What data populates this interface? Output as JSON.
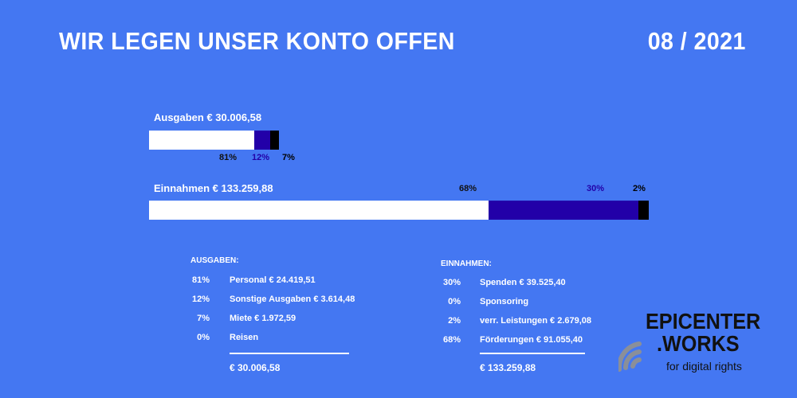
{
  "header": {
    "title": "WIR LEGEN UNSER KONTO OFFEN",
    "date": "08 / 2021"
  },
  "colors": {
    "background": "#4477f2",
    "white": "#ffffff",
    "indigo": "#2200a8",
    "black": "#000000"
  },
  "chart_data": [
    {
      "type": "bar",
      "title": "Ausgaben € 30.006,58",
      "stacked": true,
      "total": 30006.58,
      "segments": [
        {
          "label": "81%",
          "value": 81,
          "color": "#ffffff"
        },
        {
          "label": "12%",
          "value": 12,
          "color": "#2200a8"
        },
        {
          "label": "7%",
          "value": 7,
          "color": "#000000"
        }
      ]
    },
    {
      "type": "bar",
      "title": "Einnahmen € 133.259,88",
      "stacked": true,
      "total": 133259.88,
      "segments": [
        {
          "label": "68%",
          "value": 68,
          "color": "#ffffff"
        },
        {
          "label": "30%",
          "value": 30,
          "color": "#2200a8"
        },
        {
          "label": "2%",
          "value": 2,
          "color": "#000000"
        }
      ]
    }
  ],
  "ausgaben": {
    "heading": "AUSGABEN:",
    "rows": [
      {
        "pct": "81%",
        "text": "Personal € 24.419,51"
      },
      {
        "pct": "12%",
        "text": "Sonstige Ausgaben € 3.614,48"
      },
      {
        "pct": "7%",
        "text": "Miete € 1.972,59"
      },
      {
        "pct": "0%",
        "text": "Reisen"
      }
    ],
    "total": "€ 30.006,58"
  },
  "einnahmen": {
    "heading": "EINNAHMEN:",
    "rows": [
      {
        "pct": "30%",
        "text": "Spenden € 39.525,40"
      },
      {
        "pct": "0%",
        "text": "Sponsoring"
      },
      {
        "pct": "2%",
        "text": "verr. Leistungen € 2.679,08"
      },
      {
        "pct": "68%",
        "text": "Förderungen € 91.055,40"
      }
    ],
    "total": "€ 133.259,88"
  },
  "logo": {
    "line1": "EPICENTER",
    "line2": ".WORKS",
    "tagline": "for digital rights",
    "icon": "wifi-signal-icon"
  }
}
